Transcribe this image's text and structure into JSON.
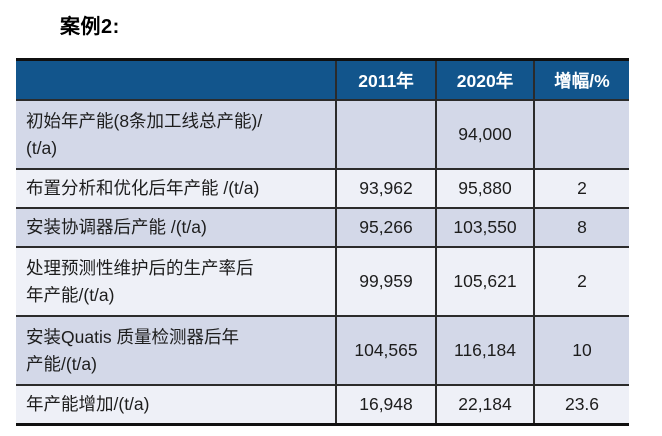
{
  "title": "案例2:",
  "colors": {
    "header_bg": "#12558c",
    "row_a_bg": "#d3d8e8",
    "row_b_bg": "#eef0f7",
    "border_strong": "#101010",
    "border_line": "#2b2b2b"
  },
  "table": {
    "columns": [
      "",
      "2011年",
      "2020年",
      "增幅/%"
    ],
    "rows": [
      {
        "label": "初始年产能(8条加工线总产能)/\n(t/a)",
        "y2011": "",
        "y2020": "94,000",
        "growth": ""
      },
      {
        "label": "布置分析和优化后年产能 /(t/a)",
        "y2011": "93,962",
        "y2020": "95,880",
        "growth": "2"
      },
      {
        "label": "安装协调器后产能 /(t/a)",
        "y2011": "95,266",
        "y2020": "103,550",
        "growth": "8"
      },
      {
        "label": "处理预测性维护后的生产率后\n年产能/(t/a)",
        "y2011": "99,959",
        "y2020": "105,621",
        "growth": "2"
      },
      {
        "label": "安装Quatis 质量检测器后年\n产能/(t/a)",
        "y2011": "104,565",
        "y2020": "116,184",
        "growth": "10"
      },
      {
        "label": "年产能增加/(t/a)",
        "y2011": "16,948",
        "y2020": "22,184",
        "growth": "23.6"
      }
    ]
  }
}
